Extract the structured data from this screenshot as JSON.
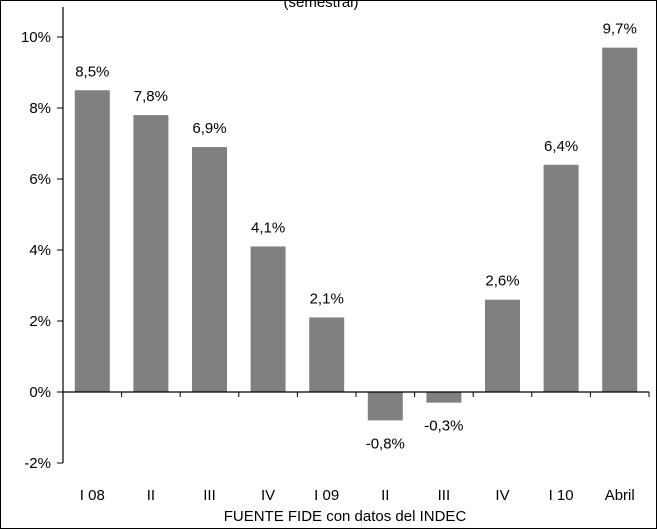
{
  "chart_data": {
    "type": "bar",
    "title": "(semestral)",
    "categories": [
      "I 08",
      "II",
      "III",
      "IV",
      "I 09",
      "II",
      "III",
      "IV",
      "I 10",
      "Abril"
    ],
    "values": [
      8.5,
      7.8,
      6.9,
      4.1,
      2.1,
      -0.8,
      -0.3,
      2.6,
      6.4,
      9.7
    ],
    "data_labels": [
      "8,5%",
      "7,8%",
      "6,9%",
      "4,1%",
      "2,1%",
      "-0,8%",
      "-0,3%",
      "2,6%",
      "6,4%",
      "9,7%"
    ],
    "ylim": [
      -2,
      10
    ],
    "yticks": [
      -2,
      0,
      2,
      4,
      6,
      8,
      10
    ],
    "ytick_labels": [
      "-2%",
      "0%",
      "2%",
      "4%",
      "6%",
      "8%",
      "10%"
    ],
    "xlabel": "",
    "ylabel": "",
    "grid": false,
    "bar_color": "#808080",
    "axis_color": "#000000"
  },
  "source_note": "FUENTE FIDE con datos del INDEC"
}
